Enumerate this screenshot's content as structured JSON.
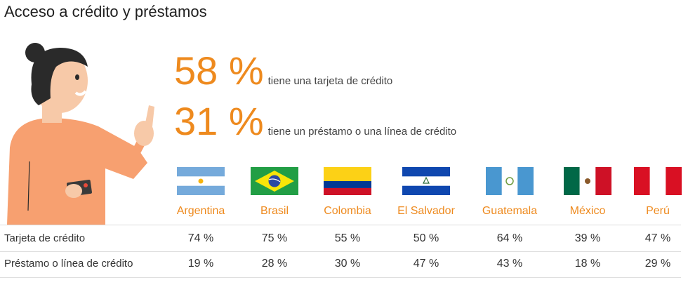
{
  "title": "Acceso a crédito y préstamos",
  "stats": [
    {
      "value": "58 %",
      "label": "tiene una tarjeta de crédito"
    },
    {
      "value": "31 %",
      "label": "tiene un préstamo o una línea de crédito"
    }
  ],
  "countries": [
    "Argentina",
    "Brasil",
    "Colombia",
    "El Salvador",
    "Guatemala",
    "México",
    "Perú"
  ],
  "rows": [
    {
      "label": "Tarjeta de crédito",
      "values": [
        "74 %",
        "75 %",
        "55 %",
        "50 %",
        "64 %",
        "39 %",
        "47 %"
      ]
    },
    {
      "label": "Préstamo o línea de crédito",
      "values": [
        "19 %",
        "28 %",
        "30 %",
        "47 %",
        "43 %",
        "18 %",
        "29 %"
      ]
    }
  ],
  "colors": {
    "accent": "#ee8a1e",
    "skin": "#f7a070"
  }
}
